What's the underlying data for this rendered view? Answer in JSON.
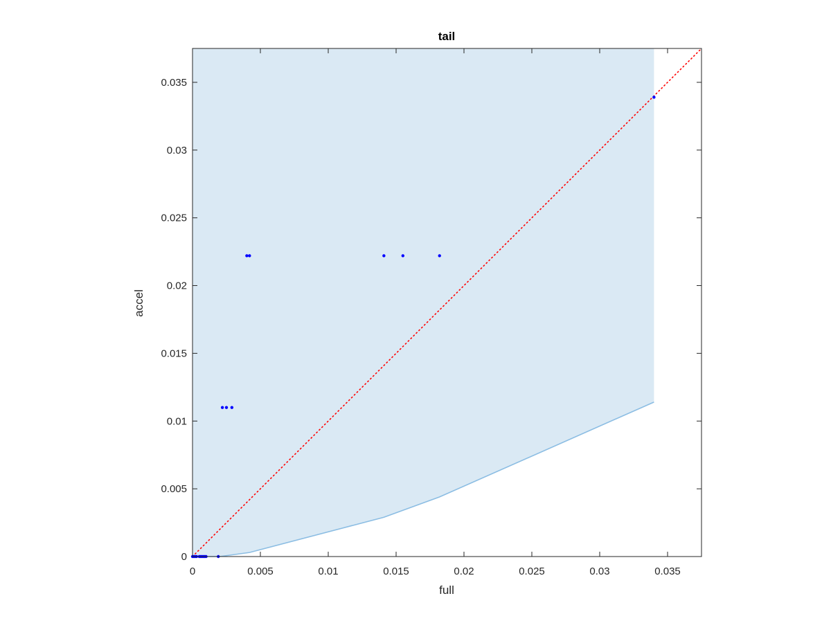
{
  "chart_data": {
    "type": "scatter",
    "title": "tail",
    "xlabel": "full",
    "ylabel": "accel",
    "xlim": [
      0,
      0.0375
    ],
    "ylim": [
      0,
      0.0375
    ],
    "xticks": [
      "0",
      "0.005",
      "0.01",
      "0.015",
      "0.02",
      "0.025",
      "0.03",
      "0.035"
    ],
    "yticks": [
      "0",
      "0.005",
      "0.01",
      "0.015",
      "0.02",
      "0.025",
      "0.03",
      "0.035"
    ],
    "grid": false,
    "colors": {
      "points": "#0000ff",
      "diagonal": "#ff0000",
      "band_fill": "#dae9f4",
      "band_edge": "#8bbde3",
      "axis": "#262626"
    },
    "band": {
      "x": [
        0,
        0.001,
        0.002,
        0.0042,
        0.0141,
        0.0182,
        0.034
      ],
      "lower": [
        0,
        0,
        0,
        0.0003,
        0.0029,
        0.0044,
        0.0114
      ],
      "upper": 0.0375
    },
    "reference_line": {
      "style": "dotted",
      "x": [
        0,
        0.0375
      ],
      "y": [
        0,
        0.0375
      ]
    },
    "points": [
      {
        "x": 0.0,
        "y": 0.0
      },
      {
        "x": 0.0001,
        "y": 0.0
      },
      {
        "x": 0.0002,
        "y": 0.0
      },
      {
        "x": 0.0003,
        "y": 0.0
      },
      {
        "x": 0.0005,
        "y": 0.0
      },
      {
        "x": 0.0006,
        "y": 0.0
      },
      {
        "x": 0.0007,
        "y": 0.0
      },
      {
        "x": 0.0008,
        "y": 0.0
      },
      {
        "x": 0.0009,
        "y": 0.0
      },
      {
        "x": 0.001,
        "y": 0.0
      },
      {
        "x": 0.0019,
        "y": 0.0
      },
      {
        "x": 0.0022,
        "y": 0.011
      },
      {
        "x": 0.0025,
        "y": 0.011
      },
      {
        "x": 0.0029,
        "y": 0.011
      },
      {
        "x": 0.004,
        "y": 0.0222
      },
      {
        "x": 0.0042,
        "y": 0.0222
      },
      {
        "x": 0.0141,
        "y": 0.0222
      },
      {
        "x": 0.0155,
        "y": 0.0222
      },
      {
        "x": 0.0182,
        "y": 0.0222
      },
      {
        "x": 0.034,
        "y": 0.0339
      }
    ]
  }
}
